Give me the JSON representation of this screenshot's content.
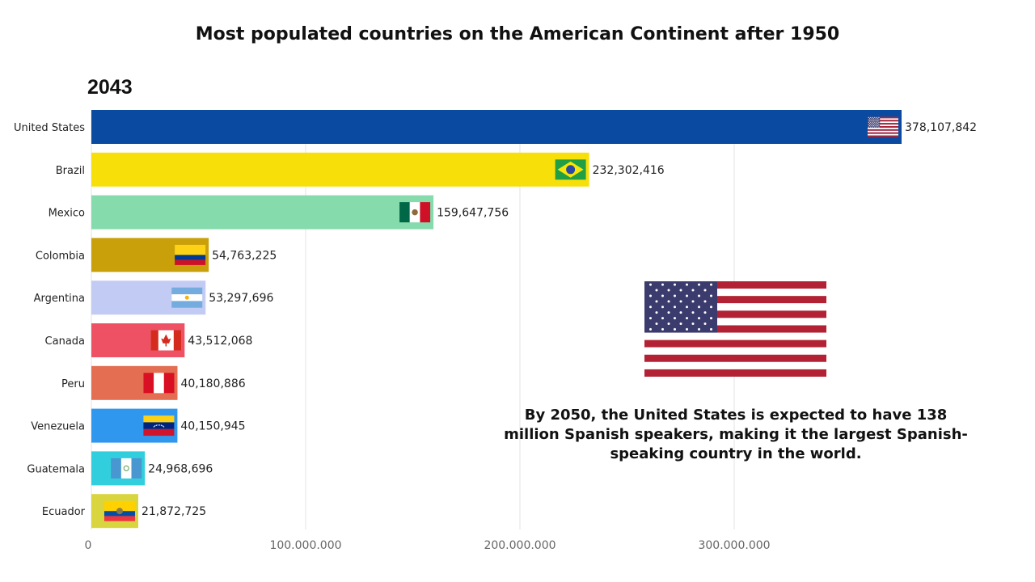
{
  "title": "Most populated countries on the American Continent after 1950",
  "year": "2043",
  "annotation": "By 2050, the United States is expected to have 138 million Spanish speakers, making it the largest Spanish-speaking country in the world.",
  "featured_flag": "us",
  "chart_data": {
    "type": "bar",
    "orientation": "horizontal",
    "title": "Most populated countries on the American Continent after 1950",
    "categories": [
      "United States",
      "Brazil",
      "Mexico",
      "Colombia",
      "Argentina",
      "Canada",
      "Peru",
      "Venezuela",
      "Guatemala",
      "Ecuador"
    ],
    "values": [
      378107842,
      232302416,
      159647756,
      54763225,
      53297696,
      43512068,
      40180886,
      40150945,
      24968696,
      21872725
    ],
    "value_labels": [
      "378,107,842",
      "232,302,416",
      "159,647,756",
      "54,763,225",
      "53,297,696",
      "43,512,068",
      "40,180,886",
      "40,150,945",
      "24,968,696",
      "21,872,725"
    ],
    "colors": [
      "#0a4ba1",
      "#f7e00a",
      "#86dbad",
      "#c9a00a",
      "#c2cbf4",
      "#ee5064",
      "#e36e52",
      "#2f97ee",
      "#31cfdd",
      "#d8d53f"
    ],
    "flags": [
      "us",
      "br",
      "mx",
      "co",
      "ar",
      "ca",
      "pe",
      "ve",
      "gt",
      "ec"
    ],
    "xlim": [
      0,
      378107842
    ],
    "xticks": [
      0,
      100000000,
      200000000,
      300000000
    ],
    "xtick_labels": [
      "0",
      "100.000.000",
      "200.000.000",
      "300.000.000"
    ],
    "grid": true
  }
}
